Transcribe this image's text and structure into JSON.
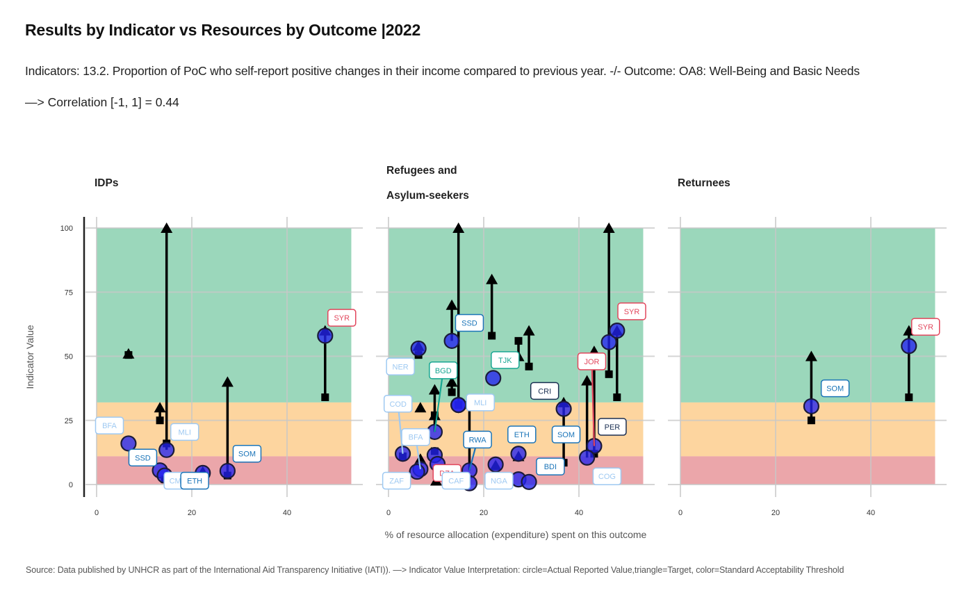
{
  "title": "Results by Indicator vs Resources by Outcome |2022",
  "subtitle": "Indicators: 13.2. Proportion of PoC who self-report positive changes in their income compared to previous year. -/- Outcome: OA8: Well-Being and Basic Needs",
  "correlation": "—> Correlation [-1, 1] = 0.44",
  "caption": "Source: Data published by UNHCR as part of the International Aid Transparency Initiative (IATI)). —> Indicator Value Interpretation: circle=Actual Reported Value,triangle=Target, color=Standard Acceptability Threshold",
  "colors": {
    "band_good": "#9bd7bb",
    "band_medium": "#fdd59f",
    "band_bad": "#eba6aa",
    "point_fill": "#2222ee",
    "grid": "#c8c8c8",
    "label_lightblue": "#9ec9f2",
    "label_blue": "#1a74b8",
    "label_navy": "#1b2f52",
    "label_teal": "#17a692",
    "label_red": "#e2475d"
  },
  "chart_data": {
    "type": "scatter",
    "title": "Results by Indicator vs Resources by Outcome |2022",
    "xlabel": "% of resource allocation (expenditure) spent on this outcome",
    "ylabel": "Indicator Value",
    "xlim": [
      0,
      54
    ],
    "ylim": [
      0,
      100
    ],
    "x_ticks": [
      "0",
      "20",
      "40"
    ],
    "y_ticks": [
      "0",
      "25",
      "50",
      "75",
      "100"
    ],
    "thresholds": {
      "bad_max": 11,
      "medium_max": 32,
      "good_max": 100
    },
    "legend": "circle=Actual Reported Value, triangle=Target, square=Baseline, color=Standard Acceptability Threshold",
    "facets": [
      {
        "name": "IDPs",
        "title_lines": [
          "IDPs"
        ],
        "points": [
          {
            "label": "BFA",
            "x": 6.7,
            "actual": 16,
            "target": null,
            "baseline": null,
            "label_color": "lightblue",
            "lx": 2.7,
            "ly": 23
          },
          {
            "label": "",
            "x": 6.7,
            "actual": null,
            "target": 51,
            "baseline": 50.5
          },
          {
            "label": "",
            "x": 13.3,
            "actual": null,
            "target": 30,
            "baseline": 25
          },
          {
            "label": "SSD",
            "x": 13.3,
            "actual": 5.5,
            "target": null,
            "baseline": null,
            "label_color": "blue",
            "lx": 9.7,
            "ly": 10.5
          },
          {
            "label": "MLI",
            "x": 14.7,
            "actual": 13.5,
            "target": 100,
            "baseline": 16,
            "label_color": "lightblue",
            "lx": 18.5,
            "ly": 20.5
          },
          {
            "label": "CMR",
            "x": 14.3,
            "actual": 3.5,
            "target": null,
            "baseline": 2,
            "label_color": "lightblue",
            "lx": 17.1,
            "ly": 1.5
          },
          {
            "label": "ETH",
            "x": 22.3,
            "actual": 4.5,
            "target": 5,
            "baseline": null,
            "label_color": "blue",
            "lx": 20.6,
            "ly": 1.5
          },
          {
            "label": "SOM",
            "x": 27.5,
            "actual": 5.3,
            "target": 40,
            "baseline": 3.5,
            "label_color": "blue",
            "lx": 31.6,
            "ly": 12
          },
          {
            "label": "SYR",
            "x": 48.0,
            "actual": 58,
            "target": 60,
            "baseline": 34,
            "label_color": "red",
            "lx": 51.5,
            "ly": 65
          }
        ]
      },
      {
        "name": "Refugees and Asylum-seekers",
        "title_lines": [
          "Refugees and",
          "Asylum-seekers"
        ],
        "points": [
          {
            "label": "NER",
            "x": 6.3,
            "actual": 53,
            "target": 54,
            "baseline": 50.5,
            "label_color": "lightblue",
            "lx": 2.5,
            "ly": 46
          },
          {
            "label": "SSD",
            "x": 13.3,
            "actual": 56,
            "target": 70,
            "baseline": null,
            "label_color": "blue",
            "lx": 17,
            "ly": 63
          },
          {
            "label": "",
            "x": 14.7,
            "actual": 31,
            "target": 100,
            "baseline": 31
          },
          {
            "label": "",
            "x": 21.7,
            "actual": null,
            "target": 80,
            "baseline": 58
          },
          {
            "label": "TJK",
            "x": 22.0,
            "actual": 41.5,
            "target": null,
            "baseline": null,
            "label_color": "teal",
            "lx": 24.5,
            "ly": 48.5
          },
          {
            "label": "",
            "x": 27.3,
            "actual": null,
            "target": 50,
            "baseline": 56
          },
          {
            "label": "",
            "x": 29.5,
            "actual": null,
            "target": 60,
            "baseline": 46
          },
          {
            "label": "BGD",
            "x": 9.7,
            "actual": 20.5,
            "target": 37,
            "baseline": null,
            "label_color": "teal",
            "lx": 11.5,
            "ly": 44.5
          },
          {
            "label": "",
            "x": 13.3,
            "actual": null,
            "target": 40,
            "baseline": 36
          },
          {
            "label": "",
            "x": 6.7,
            "actual": null,
            "target": 30,
            "baseline": null
          },
          {
            "label": "",
            "x": 9.7,
            "actual": null,
            "target": 27,
            "baseline": 27
          },
          {
            "label": "MLI",
            "x": 14.7,
            "actual": 31,
            "target": null,
            "baseline": null,
            "label_color": "lightblue",
            "lx": 19.3,
            "ly": 32
          },
          {
            "label": "COD",
            "x": 3.0,
            "actual": 12,
            "target": null,
            "baseline": 11,
            "label_color": "lightblue",
            "lx": 2.0,
            "ly": 31.5
          },
          {
            "label": "BFA",
            "x": 6.7,
            "actual": 6,
            "target": 10,
            "baseline": null,
            "label_color": "lightblue",
            "lx": 5.7,
            "ly": 18.5
          },
          {
            "label": "",
            "x": 6.0,
            "actual": 5,
            "target": null,
            "baseline": null
          },
          {
            "label": "",
            "x": 9.7,
            "actual": 11.5,
            "target": null,
            "baseline": 13
          },
          {
            "label": "",
            "x": 10.3,
            "actual": 8,
            "target": null,
            "baseline": null
          },
          {
            "label": "DZA",
            "x": 10.0,
            "actual": null,
            "target": 1.5,
            "baseline": null,
            "label_color": "red",
            "lx": 12.3,
            "ly": 4.5
          },
          {
            "label": "ZAF",
            "x": 3.0,
            "actual": null,
            "target": null,
            "baseline": null,
            "label_color": "lightblue",
            "lx": 1.7,
            "ly": 1.5
          },
          {
            "label": "RWA",
            "x": 17.0,
            "actual": 5.5,
            "target": null,
            "baseline": 31,
            "label_color": "blue",
            "lx": 18.7,
            "ly": 17.5
          },
          {
            "label": "CAF",
            "x": 17.0,
            "actual": 0.5,
            "target": null,
            "baseline": null,
            "label_color": "lightblue",
            "lx": 14.2,
            "ly": 1.5
          },
          {
            "label": "NGA",
            "x": 22.5,
            "actual": 7.8,
            "target": 7.5,
            "baseline": null,
            "label_color": "lightblue",
            "lx": 23.2,
            "ly": 1.5
          },
          {
            "label": "ETH",
            "x": 27.3,
            "actual": 12,
            "target": 11,
            "baseline": null,
            "label_color": "blue",
            "lx": 28,
            "ly": 19.5
          },
          {
            "label": "",
            "x": 27.3,
            "actual": 2,
            "target": null,
            "baseline": null
          },
          {
            "label": "",
            "x": 29.5,
            "actual": 1,
            "target": null,
            "baseline": null
          },
          {
            "label": "SOM",
            "x": 36.8,
            "actual": 29.5,
            "target": 32,
            "baseline": 8.5,
            "label_color": "blue",
            "lx": 37.3,
            "ly": 19.5
          },
          {
            "label": "CRI",
            "x": 33.0,
            "actual": null,
            "target": null,
            "baseline": null,
            "label_color": "navy",
            "lx": 32.8,
            "ly": 36.5
          },
          {
            "label": "BDI",
            "x": 34.0,
            "actual": null,
            "target": null,
            "baseline": null,
            "label_color": "blue",
            "lx": 34.0,
            "ly": 7
          },
          {
            "label": "JOR",
            "x": 43.2,
            "actual": 15,
            "target": 52,
            "baseline": 12,
            "label_color": "red",
            "lx": 42.7,
            "ly": 48
          },
          {
            "label": "",
            "x": 41.7,
            "actual": 10.5,
            "target": 40.5,
            "baseline": null
          },
          {
            "label": "PER",
            "x": 43.2,
            "actual": null,
            "target": null,
            "baseline": null,
            "label_color": "navy",
            "lx": 47.0,
            "ly": 22.5
          },
          {
            "label": "COG",
            "x": 41.7,
            "actual": null,
            "target": null,
            "baseline": null,
            "label_color": "lightblue",
            "lx": 45.9,
            "ly": 3.2
          },
          {
            "label": "",
            "x": 46.3,
            "actual": 55.5,
            "target": 100,
            "baseline": 43
          },
          {
            "label": "SYR",
            "x": 48.0,
            "actual": 60,
            "target": 60,
            "baseline": 34,
            "label_color": "red",
            "lx": 51.1,
            "ly": 67.5
          }
        ]
      },
      {
        "name": "Returnees",
        "title_lines": [
          "Returnees"
        ],
        "points": [
          {
            "label": "SOM",
            "x": 27.5,
            "actual": 30.5,
            "target": 50,
            "baseline": 25,
            "label_color": "blue",
            "lx": 32.5,
            "ly": 37.5
          },
          {
            "label": "SYR",
            "x": 48.0,
            "actual": 54,
            "target": 60,
            "baseline": 34,
            "label_color": "red",
            "lx": 51.5,
            "ly": 61.5
          }
        ]
      }
    ]
  }
}
